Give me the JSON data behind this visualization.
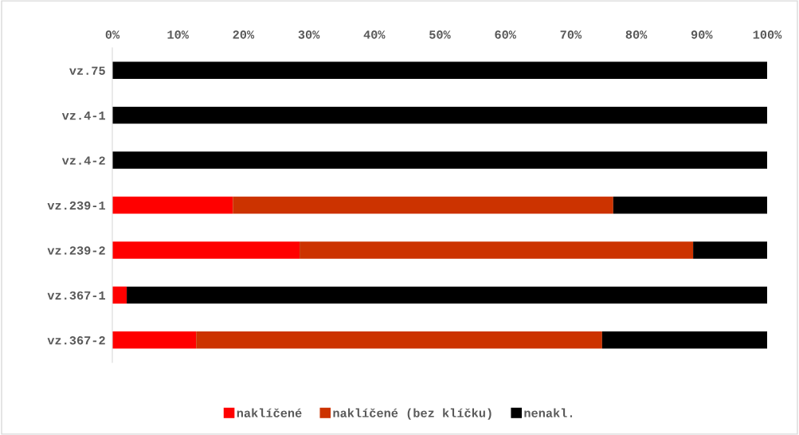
{
  "chart_data": {
    "type": "bar",
    "orientation": "horizontal",
    "stacked": true,
    "categories": [
      "vz.75",
      "vz.4-1",
      "vz.4-2",
      "vz.239-1",
      "vz.239-2",
      "vz.367-1",
      "vz.367-2"
    ],
    "series": [
      {
        "name": "naklíčené",
        "color": "#ff0000",
        "values": [
          0,
          0,
          0,
          18.4,
          28.6,
          2.2,
          12.8
        ]
      },
      {
        "name": "naklíčené (bez klíčku)",
        "color": "#cc3300",
        "values": [
          0,
          0,
          0,
          58.1,
          60.1,
          0,
          62.0
        ]
      },
      {
        "name": "nenakl.",
        "color": "#000000",
        "values": [
          100,
          100,
          100,
          23.5,
          11.3,
          97.8,
          25.2
        ]
      }
    ],
    "xlim": [
      0,
      100
    ],
    "xticks": [
      {
        "value": 0,
        "label": "0%"
      },
      {
        "value": 10,
        "label": "10%"
      },
      {
        "value": 20,
        "label": "20%"
      },
      {
        "value": 30,
        "label": "30%"
      },
      {
        "value": 40,
        "label": "40%"
      },
      {
        "value": 50,
        "label": "50%"
      },
      {
        "value": 60,
        "label": "60%"
      },
      {
        "value": 70,
        "label": "70%"
      },
      {
        "value": 80,
        "label": "80%"
      },
      {
        "value": 90,
        "label": "90%"
      },
      {
        "value": 100,
        "label": "100%"
      }
    ],
    "grid": false,
    "legend": "bottom"
  }
}
